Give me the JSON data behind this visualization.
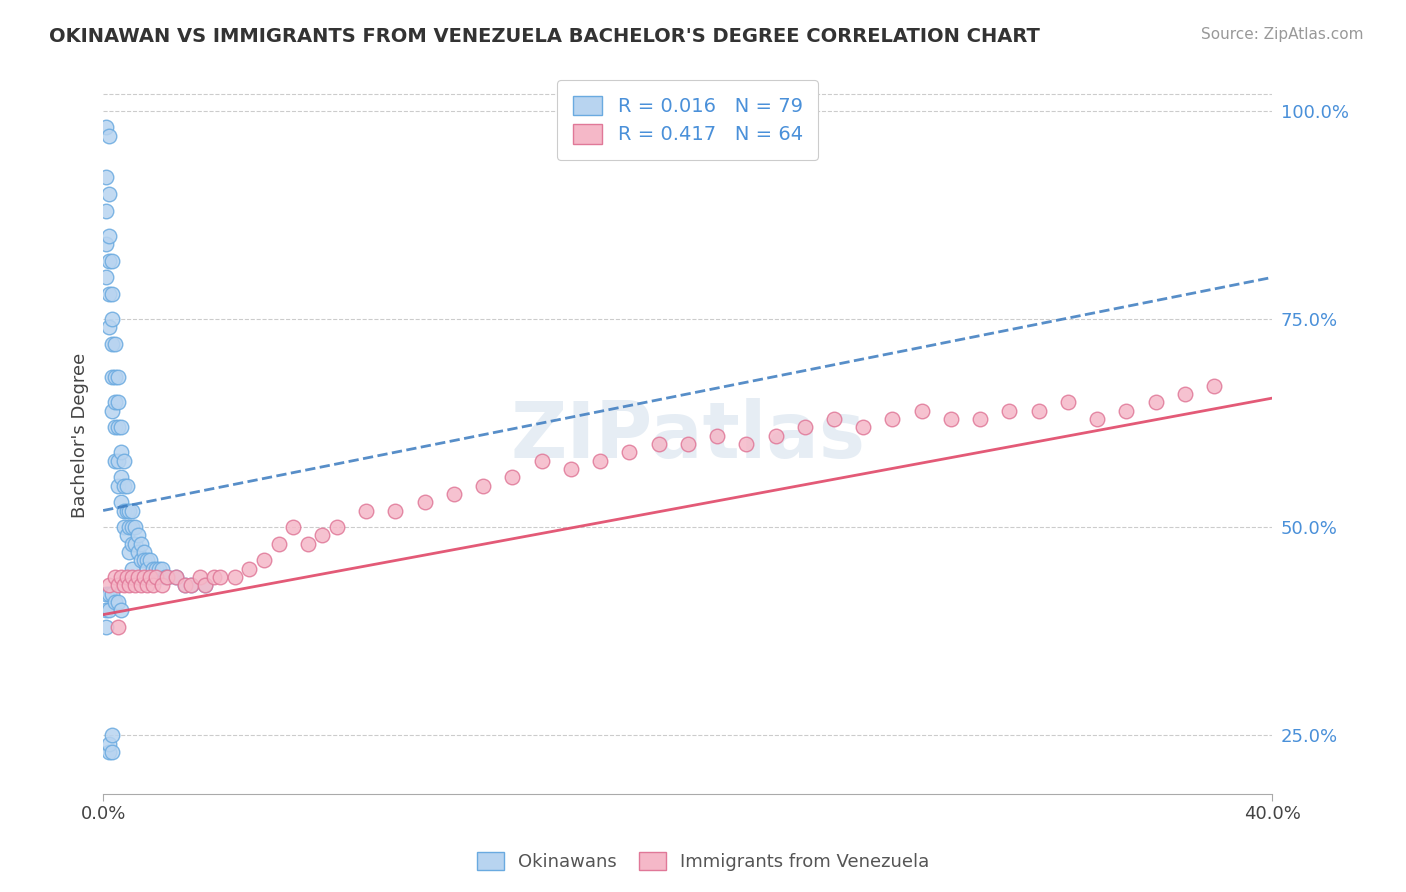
{
  "title": "OKINAWAN VS IMMIGRANTS FROM VENEZUELA BACHELOR'S DEGREE CORRELATION CHART",
  "source_text": "Source: ZipAtlas.com",
  "ylabel": "Bachelor's Degree",
  "watermark": "ZIPatlas",
  "blue_color": "#b8d4f0",
  "blue_edge": "#6aaae0",
  "pink_color": "#f5b8c8",
  "pink_edge": "#e07898",
  "trend_blue_color": "#3a7abf",
  "trend_pink_color": "#e04868",
  "legend_r1": "R = 0.016",
  "legend_n1": "N = 79",
  "legend_r2": "R = 0.417",
  "legend_n2": "N = 64",
  "xmin": 0.0,
  "xmax": 0.4,
  "ymin": 0.18,
  "ymax": 1.04,
  "right_yticks": [
    0.25,
    0.5,
    0.75,
    1.0
  ],
  "right_yticklabels": [
    "25.0%",
    "50.0%",
    "75.0%",
    "100.0%"
  ],
  "blue_trend_x0": 0.0,
  "blue_trend_x1": 0.4,
  "blue_trend_y0": 0.52,
  "blue_trend_y1": 0.8,
  "pink_trend_x0": 0.0,
  "pink_trend_x1": 0.4,
  "pink_trend_y0": 0.395,
  "pink_trend_y1": 0.655,
  "blue_x": [
    0.001,
    0.001,
    0.001,
    0.001,
    0.001,
    0.002,
    0.002,
    0.002,
    0.002,
    0.002,
    0.002,
    0.003,
    0.003,
    0.003,
    0.003,
    0.003,
    0.003,
    0.004,
    0.004,
    0.004,
    0.004,
    0.004,
    0.005,
    0.005,
    0.005,
    0.005,
    0.005,
    0.006,
    0.006,
    0.006,
    0.006,
    0.007,
    0.007,
    0.007,
    0.007,
    0.008,
    0.008,
    0.008,
    0.009,
    0.009,
    0.009,
    0.01,
    0.01,
    0.01,
    0.01,
    0.011,
    0.011,
    0.012,
    0.012,
    0.013,
    0.013,
    0.014,
    0.014,
    0.015,
    0.015,
    0.016,
    0.017,
    0.018,
    0.019,
    0.02,
    0.021,
    0.022,
    0.025,
    0.028,
    0.03,
    0.035,
    0.002,
    0.002,
    0.003,
    0.003,
    0.001,
    0.001,
    0.001,
    0.002,
    0.002,
    0.003,
    0.004,
    0.005,
    0.006
  ],
  "blue_y": [
    0.98,
    0.92,
    0.88,
    0.84,
    0.8,
    0.97,
    0.9,
    0.85,
    0.82,
    0.78,
    0.74,
    0.82,
    0.78,
    0.75,
    0.72,
    0.68,
    0.64,
    0.72,
    0.68,
    0.65,
    0.62,
    0.58,
    0.68,
    0.65,
    0.62,
    0.58,
    0.55,
    0.62,
    0.59,
    0.56,
    0.53,
    0.58,
    0.55,
    0.52,
    0.5,
    0.55,
    0.52,
    0.49,
    0.52,
    0.5,
    0.47,
    0.52,
    0.5,
    0.48,
    0.45,
    0.5,
    0.48,
    0.49,
    0.47,
    0.48,
    0.46,
    0.47,
    0.46,
    0.46,
    0.45,
    0.46,
    0.45,
    0.45,
    0.45,
    0.45,
    0.44,
    0.44,
    0.44,
    0.43,
    0.43,
    0.43,
    0.23,
    0.24,
    0.23,
    0.25,
    0.42,
    0.4,
    0.38,
    0.42,
    0.4,
    0.42,
    0.41,
    0.41,
    0.4
  ],
  "pink_x": [
    0.002,
    0.004,
    0.005,
    0.006,
    0.007,
    0.008,
    0.009,
    0.01,
    0.011,
    0.012,
    0.013,
    0.014,
    0.015,
    0.016,
    0.017,
    0.018,
    0.02,
    0.022,
    0.025,
    0.028,
    0.03,
    0.033,
    0.035,
    0.038,
    0.04,
    0.045,
    0.05,
    0.055,
    0.06,
    0.065,
    0.07,
    0.075,
    0.08,
    0.09,
    0.1,
    0.11,
    0.12,
    0.13,
    0.14,
    0.15,
    0.16,
    0.17,
    0.18,
    0.19,
    0.2,
    0.21,
    0.22,
    0.23,
    0.24,
    0.25,
    0.26,
    0.27,
    0.28,
    0.29,
    0.3,
    0.31,
    0.32,
    0.33,
    0.34,
    0.35,
    0.36,
    0.37,
    0.38,
    0.005
  ],
  "pink_y": [
    0.43,
    0.44,
    0.43,
    0.44,
    0.43,
    0.44,
    0.43,
    0.44,
    0.43,
    0.44,
    0.43,
    0.44,
    0.43,
    0.44,
    0.43,
    0.44,
    0.43,
    0.44,
    0.44,
    0.43,
    0.43,
    0.44,
    0.43,
    0.44,
    0.44,
    0.44,
    0.45,
    0.46,
    0.48,
    0.5,
    0.48,
    0.49,
    0.5,
    0.52,
    0.52,
    0.53,
    0.54,
    0.55,
    0.56,
    0.58,
    0.57,
    0.58,
    0.59,
    0.6,
    0.6,
    0.61,
    0.6,
    0.61,
    0.62,
    0.63,
    0.62,
    0.63,
    0.64,
    0.63,
    0.63,
    0.64,
    0.64,
    0.65,
    0.63,
    0.64,
    0.65,
    0.66,
    0.67,
    0.38
  ]
}
